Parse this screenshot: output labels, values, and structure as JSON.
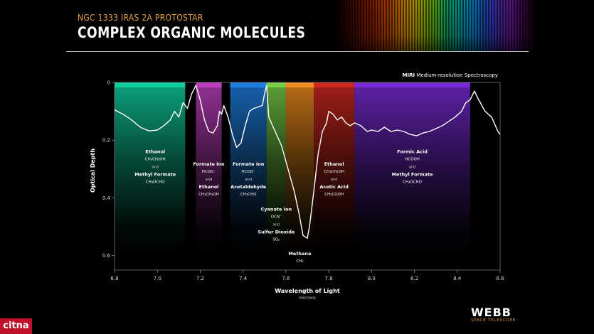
{
  "header": {
    "subtitle": "NGC 1333 IRAS 2A PROTOSTAR",
    "title": "COMPLEX ORGANIC MOLECULES"
  },
  "instrument": {
    "bold": "MIRI",
    "rest": " Medium-resolution Spectroscopy"
  },
  "logo": {
    "name": "WEBB",
    "sub": "SPACE TELESCOPE"
  },
  "watermark": "citna",
  "chart_data": {
    "type": "line",
    "title": "",
    "xlabel": "Wavelength of Light",
    "xlabel_unit": "microns",
    "ylabel": "Optical Depth",
    "xlim": [
      6.8,
      8.6
    ],
    "ylim": [
      0,
      0.65
    ],
    "y_inverted": true,
    "xticks": [
      "6.8",
      "7.0",
      "7.2",
      "7.4",
      "7.6",
      "7.8",
      "8.0",
      "8.2",
      "8.4",
      "8.6"
    ],
    "xtick_values": [
      6.8,
      7.0,
      7.2,
      7.4,
      7.6,
      7.8,
      8.0,
      8.2,
      8.4,
      8.6
    ],
    "yticks": [
      "0",
      "0.2",
      "0.4",
      "0.6"
    ],
    "ytick_values": [
      0,
      0.2,
      0.4,
      0.6
    ],
    "grid": false,
    "series": [
      {
        "points": [
          [
            6.8,
            0.095
          ],
          [
            6.84,
            0.11
          ],
          [
            6.88,
            0.13
          ],
          [
            6.92,
            0.155
          ],
          [
            6.96,
            0.168
          ],
          [
            7.0,
            0.165
          ],
          [
            7.03,
            0.15
          ],
          [
            7.06,
            0.13
          ],
          [
            7.08,
            0.1
          ],
          [
            7.1,
            0.12
          ],
          [
            7.12,
            0.07
          ],
          [
            7.14,
            0.09
          ],
          [
            7.16,
            0.04
          ],
          [
            7.18,
            0.01
          ],
          [
            7.2,
            0.06
          ],
          [
            7.22,
            0.13
          ],
          [
            7.24,
            0.17
          ],
          [
            7.26,
            0.175
          ],
          [
            7.28,
            0.15
          ],
          [
            7.29,
            0.1
          ],
          [
            7.3,
            0.11
          ],
          [
            7.31,
            0.08
          ],
          [
            7.33,
            0.12
          ],
          [
            7.35,
            0.18
          ],
          [
            7.37,
            0.225
          ],
          [
            7.39,
            0.21
          ],
          [
            7.41,
            0.15
          ],
          [
            7.43,
            0.1
          ],
          [
            7.45,
            0.09
          ],
          [
            7.47,
            0.085
          ],
          [
            7.49,
            0.08
          ],
          [
            7.5,
            0.04
          ],
          [
            7.51,
            0.01
          ],
          [
            7.52,
            0.12
          ],
          [
            7.55,
            0.17
          ],
          [
            7.58,
            0.22
          ],
          [
            7.61,
            0.3
          ],
          [
            7.64,
            0.38
          ],
          [
            7.66,
            0.45
          ],
          [
            7.68,
            0.53
          ],
          [
            7.7,
            0.54
          ],
          [
            7.71,
            0.5
          ],
          [
            7.73,
            0.38
          ],
          [
            7.75,
            0.25
          ],
          [
            7.77,
            0.17
          ],
          [
            7.79,
            0.14
          ],
          [
            7.8,
            0.1
          ],
          [
            7.82,
            0.11
          ],
          [
            7.84,
            0.13
          ],
          [
            7.86,
            0.12
          ],
          [
            7.88,
            0.14
          ],
          [
            7.9,
            0.15
          ],
          [
            7.92,
            0.14
          ],
          [
            7.95,
            0.15
          ],
          [
            7.98,
            0.17
          ],
          [
            8.0,
            0.165
          ],
          [
            8.03,
            0.17
          ],
          [
            8.06,
            0.155
          ],
          [
            8.09,
            0.17
          ],
          [
            8.12,
            0.165
          ],
          [
            8.15,
            0.17
          ],
          [
            8.18,
            0.18
          ],
          [
            8.21,
            0.185
          ],
          [
            8.24,
            0.175
          ],
          [
            8.27,
            0.17
          ],
          [
            8.3,
            0.16
          ],
          [
            8.33,
            0.15
          ],
          [
            8.36,
            0.135
          ],
          [
            8.39,
            0.12
          ],
          [
            8.42,
            0.1
          ],
          [
            8.44,
            0.07
          ],
          [
            8.46,
            0.06
          ],
          [
            8.48,
            0.03
          ],
          [
            8.5,
            0.06
          ],
          [
            8.53,
            0.1
          ],
          [
            8.56,
            0.12
          ],
          [
            8.59,
            0.17
          ],
          [
            8.6,
            0.18
          ]
        ]
      }
    ],
    "bands": [
      {
        "x0": 6.8,
        "x1": 7.13,
        "color": "#0fd0a0",
        "labels": [
          {
            "text": "Ethanol",
            "kind": "name"
          },
          {
            "text": "CH₃CH₂OH",
            "kind": "formula"
          },
          {
            "text": "and",
            "kind": "and"
          },
          {
            "text": "Methyl Formate",
            "kind": "name"
          },
          {
            "text": "CH₃OCHO",
            "kind": "formula"
          }
        ],
        "label_x": 6.99,
        "label_y": 0.245
      },
      {
        "x0": 7.18,
        "x1": 7.3,
        "color": "#c03fc0",
        "labels": [
          {
            "text": "Formate Ion",
            "kind": "name"
          },
          {
            "text": "HCOO⁻",
            "kind": "formula"
          },
          {
            "text": "and",
            "kind": "and"
          },
          {
            "text": "Ethanol",
            "kind": "name"
          },
          {
            "text": "CH₃CH₂OH",
            "kind": "formula"
          }
        ],
        "label_x": 7.24,
        "label_y": 0.288
      },
      {
        "x0": 7.34,
        "x1": 7.51,
        "color": "#1d7fe0",
        "labels": [
          {
            "text": "Formate Ion",
            "kind": "name"
          },
          {
            "text": "HCOO⁻",
            "kind": "formula"
          },
          {
            "text": "and",
            "kind": "and"
          },
          {
            "text": "Acetaldehyde",
            "kind": "name"
          },
          {
            "text": "CH₃CHO",
            "kind": "formula"
          }
        ],
        "label_x": 7.425,
        "label_y": 0.288
      },
      {
        "x0": 7.51,
        "x1": 7.6,
        "color": "#78d048",
        "labels": [
          {
            "text": "Cyanate Ion",
            "kind": "name"
          },
          {
            "text": "OCN⁻",
            "kind": "formula"
          },
          {
            "text": "and",
            "kind": "and"
          },
          {
            "text": "Sulfur Dioxide",
            "kind": "name"
          },
          {
            "text": "SO₂",
            "kind": "formula"
          }
        ],
        "label_x": 7.555,
        "label_y": 0.445
      },
      {
        "x0": 7.6,
        "x1": 7.73,
        "color": "#f08c1c",
        "labels": [
          {
            "text": "Methane",
            "kind": "name"
          },
          {
            "text": "CH₄",
            "kind": "formula"
          }
        ],
        "label_x": 7.665,
        "label_y": 0.598
      },
      {
        "x0": 7.73,
        "x1": 7.92,
        "color": "#d0281e",
        "labels": [
          {
            "text": "Ethanol",
            "kind": "name"
          },
          {
            "text": "CH₃CH₂OH",
            "kind": "formula"
          },
          {
            "text": "and",
            "kind": "and"
          },
          {
            "text": "Acetic Acid",
            "kind": "name"
          },
          {
            "text": "CH₃COOH",
            "kind": "formula"
          }
        ],
        "label_x": 7.825,
        "label_y": 0.288
      },
      {
        "x0": 7.92,
        "x1": 8.46,
        "color": "#7a2bd8",
        "labels": [
          {
            "text": "Formic Acid",
            "kind": "name"
          },
          {
            "text": "HCOOH",
            "kind": "formula"
          },
          {
            "text": "and",
            "kind": "and"
          },
          {
            "text": "Methyl Formate",
            "kind": "name"
          },
          {
            "text": "CH₃OCHO",
            "kind": "formula"
          }
        ],
        "label_x": 8.19,
        "label_y": 0.245
      }
    ]
  }
}
